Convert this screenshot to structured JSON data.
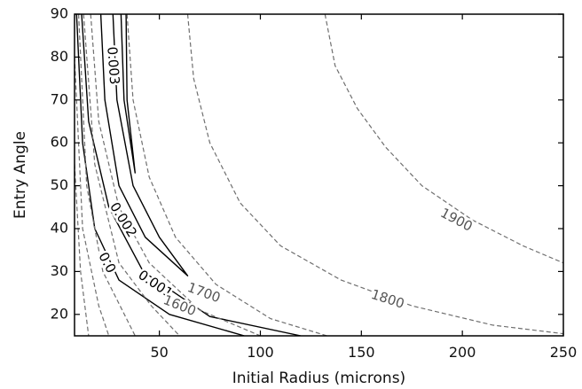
{
  "chart_data": {
    "type": "contour",
    "title": "",
    "xlabel": "Initial Radius (microns)",
    "ylabel": "Entry Angle",
    "xlim": [
      8,
      250
    ],
    "ylim": [
      15,
      90
    ],
    "xticks": [
      50,
      100,
      150,
      200,
      250
    ],
    "yticks": [
      20,
      30,
      40,
      50,
      60,
      70,
      80,
      90
    ],
    "grid": false,
    "colors": {
      "solid": "#000000",
      "dashed": "#6f6f6f",
      "axis": "#000000"
    },
    "series": [
      {
        "name": "0.0",
        "group": "solid",
        "labeled": true,
        "points": [
          [
            9,
            90
          ],
          [
            12,
            60
          ],
          [
            18,
            40
          ],
          [
            30,
            28
          ],
          [
            55,
            20
          ],
          [
            92,
            15
          ]
        ]
      },
      {
        "name": "0.001",
        "group": "solid",
        "labeled": true,
        "points": [
          [
            11.5,
            90
          ],
          [
            15,
            65
          ],
          [
            25,
            45
          ],
          [
            42,
            30
          ],
          [
            75,
            19.5
          ],
          [
            120,
            15
          ]
        ]
      },
      {
        "name": "0.002",
        "group": "solid",
        "labeled": true,
        "closed": true,
        "points": [
          [
            21,
            90
          ],
          [
            23,
            70
          ],
          [
            30,
            50
          ],
          [
            43,
            38
          ],
          [
            64,
            29
          ],
          [
            50,
            38
          ],
          [
            37,
            50
          ],
          [
            29,
            70
          ],
          [
            27,
            90
          ]
        ]
      },
      {
        "name": "0.003",
        "group": "solid",
        "labeled": true,
        "closed": true,
        "points": [
          [
            31,
            90
          ],
          [
            32.5,
            70
          ],
          [
            38,
            53
          ],
          [
            34,
            70
          ],
          [
            33.5,
            90
          ]
        ]
      },
      {
        "name": "",
        "group": "dashed",
        "labeled": false,
        "points": [
          [
            8,
            55
          ],
          [
            11,
            30
          ],
          [
            15,
            15
          ]
        ]
      },
      {
        "name": "",
        "group": "dashed",
        "labeled": false,
        "points": [
          [
            8,
            80
          ],
          [
            12,
            40
          ],
          [
            20,
            22
          ],
          [
            25,
            15
          ]
        ]
      },
      {
        "name": "",
        "group": "dashed",
        "labeled": false,
        "points": [
          [
            10,
            90
          ],
          [
            14,
            50
          ],
          [
            22,
            30
          ],
          [
            38,
            15
          ]
        ]
      },
      {
        "name": "",
        "group": "dashed",
        "labeled": false,
        "points": [
          [
            12.5,
            90
          ],
          [
            18,
            55
          ],
          [
            30,
            32
          ],
          [
            46,
            22
          ],
          [
            60,
            15
          ]
        ]
      },
      {
        "name": "1600",
        "group": "dashed",
        "labeled": true,
        "points": [
          [
            16,
            90
          ],
          [
            20,
            65
          ],
          [
            30,
            45
          ],
          [
            45,
            32
          ],
          [
            70,
            21
          ],
          [
            100,
            15
          ]
        ]
      },
      {
        "name": "1700",
        "group": "dashed",
        "labeled": true,
        "points": [
          [
            34,
            90
          ],
          [
            37,
            70
          ],
          [
            45,
            52
          ],
          [
            58,
            38
          ],
          [
            78,
            27
          ],
          [
            105,
            19
          ],
          [
            133,
            15
          ]
        ]
      },
      {
        "name": "1800",
        "group": "dashed",
        "labeled": true,
        "points": [
          [
            64,
            90
          ],
          [
            67,
            75
          ],
          [
            75,
            60
          ],
          [
            90,
            46
          ],
          [
            110,
            36
          ],
          [
            140,
            28
          ],
          [
            175,
            22
          ],
          [
            215,
            17.5
          ],
          [
            250,
            15.5
          ]
        ]
      },
      {
        "name": "1900",
        "group": "dashed",
        "labeled": true,
        "points": [
          [
            132,
            90
          ],
          [
            137,
            78
          ],
          [
            148,
            68
          ],
          [
            162,
            59
          ],
          [
            180,
            50
          ],
          [
            205,
            42
          ],
          [
            230,
            36
          ],
          [
            250,
            32
          ]
        ]
      }
    ],
    "annotations": [
      {
        "series": "0.0",
        "text": "0.0",
        "x": 24,
        "y": 32,
        "angle": 62,
        "color": "#000000"
      },
      {
        "series": "0.001",
        "text": "0.001",
        "x": 48,
        "y": 27,
        "angle": 34,
        "color": "#000000"
      },
      {
        "series": "0.002",
        "text": "0.002",
        "x": 32,
        "y": 42,
        "angle": 58,
        "color": "#000000"
      },
      {
        "series": "0.003",
        "text": "0.003",
        "x": 27,
        "y": 78,
        "angle": 86,
        "color": "#000000"
      },
      {
        "series": "1600",
        "text": "1600",
        "x": 60,
        "y": 22,
        "angle": 22,
        "color": "#555555"
      },
      {
        "series": "1700",
        "text": "1700",
        "x": 72,
        "y": 25,
        "angle": 20,
        "color": "#555555"
      },
      {
        "series": "1800",
        "text": "1800",
        "x": 163,
        "y": 23.5,
        "angle": 18,
        "color": "#555555"
      },
      {
        "series": "1900",
        "text": "1900",
        "x": 197,
        "y": 42,
        "angle": 28,
        "color": "#555555"
      }
    ]
  }
}
